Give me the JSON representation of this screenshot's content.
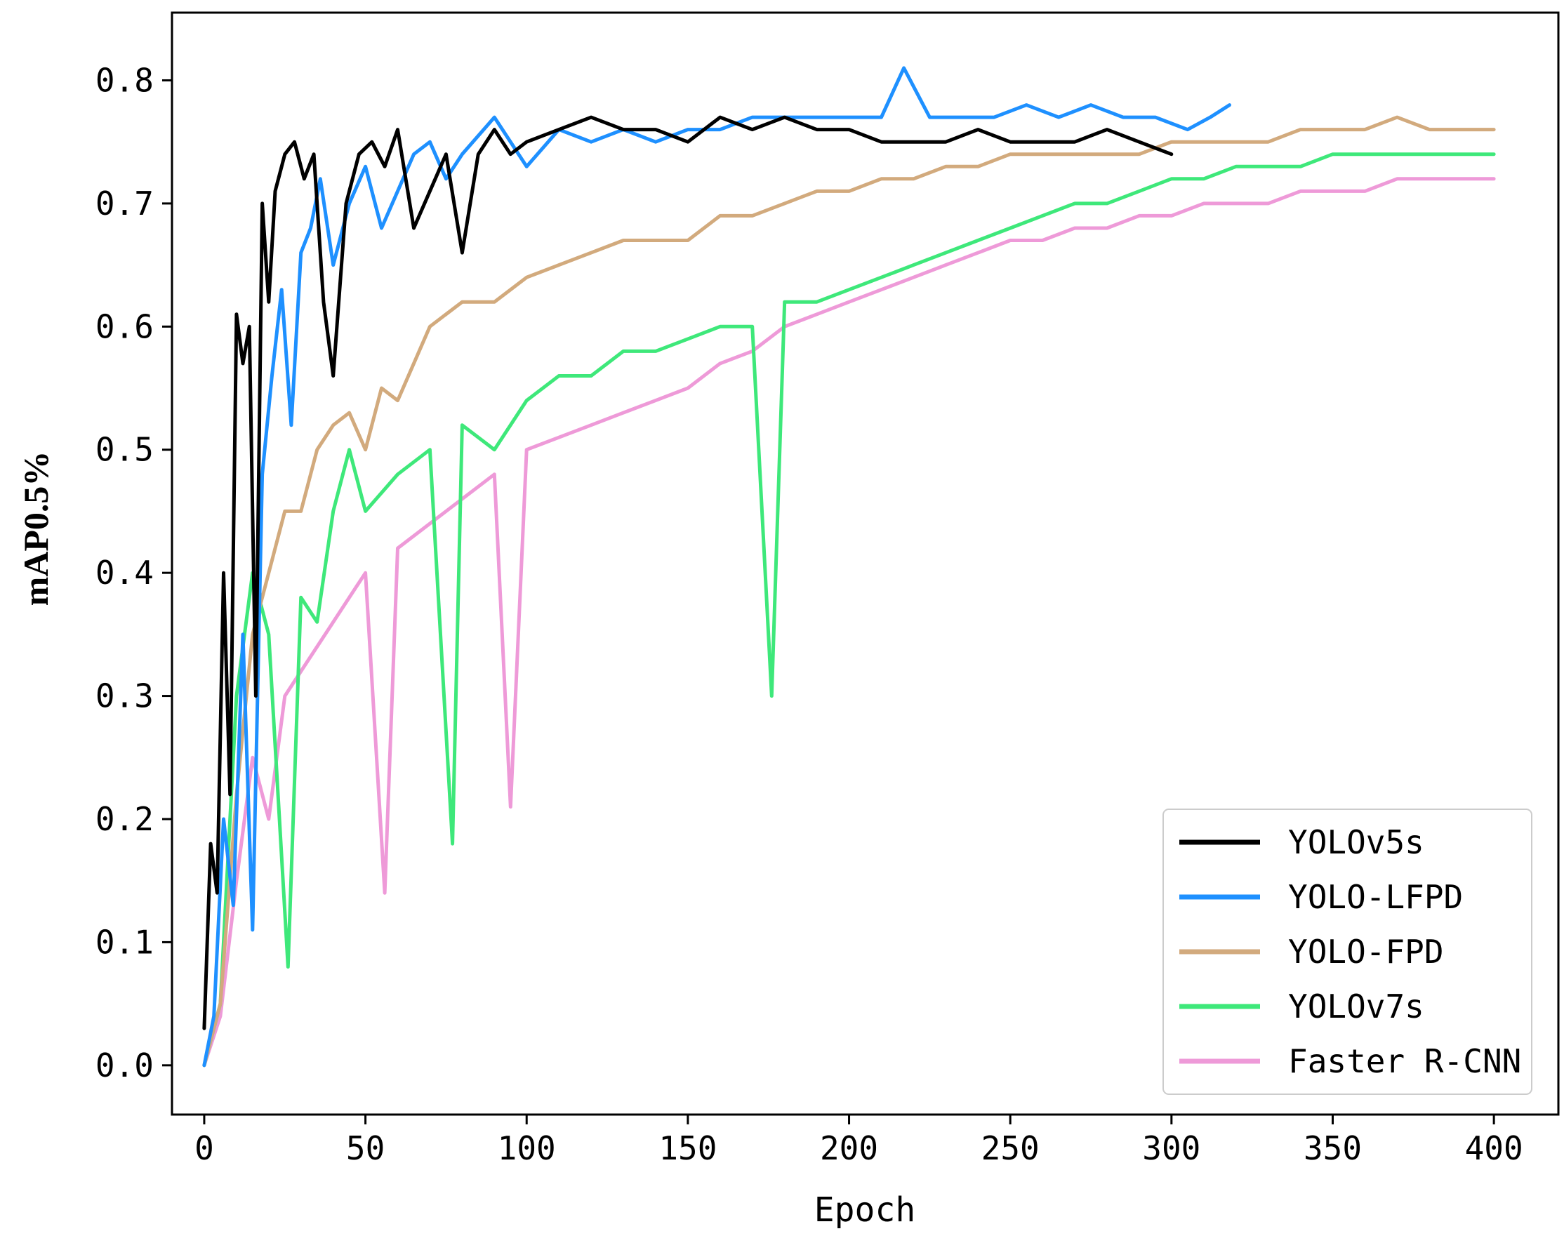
{
  "chart_data": {
    "type": "line",
    "title": "",
    "xlabel": "Epoch",
    "ylabel": "mAP0.5%",
    "xlim": [
      -10,
      420
    ],
    "ylim": [
      -0.04,
      0.855
    ],
    "xticks": [
      0,
      50,
      100,
      150,
      200,
      250,
      300,
      350,
      400
    ],
    "yticks": [
      0.0,
      0.1,
      0.2,
      0.3,
      0.4,
      0.5,
      0.6,
      0.7,
      0.8
    ],
    "xtick_labels": [
      "0",
      "50",
      "100",
      "150",
      "200",
      "250",
      "300",
      "350",
      "400"
    ],
    "ytick_labels": [
      "0.0",
      "0.1",
      "0.2",
      "0.3",
      "0.4",
      "0.5",
      "0.6",
      "0.7",
      "0.8"
    ],
    "grid": false,
    "legend_position": "lower-right",
    "series": [
      {
        "name": "YOLOv5s",
        "color": "#000000",
        "x": [
          0,
          2,
          4,
          6,
          8,
          10,
          12,
          14,
          16,
          18,
          20,
          22,
          25,
          28,
          31,
          34,
          37,
          40,
          44,
          48,
          52,
          56,
          60,
          65,
          70,
          75,
          80,
          85,
          90,
          95,
          100,
          110,
          120,
          130,
          140,
          150,
          160,
          170,
          180,
          190,
          200,
          210,
          220,
          230,
          240,
          250,
          260,
          270,
          280,
          290,
          300
        ],
        "values": [
          0.03,
          0.18,
          0.14,
          0.4,
          0.22,
          0.61,
          0.57,
          0.6,
          0.3,
          0.7,
          0.62,
          0.71,
          0.74,
          0.75,
          0.72,
          0.74,
          0.62,
          0.56,
          0.7,
          0.74,
          0.75,
          0.73,
          0.76,
          0.68,
          0.71,
          0.74,
          0.66,
          0.74,
          0.76,
          0.74,
          0.75,
          0.76,
          0.77,
          0.76,
          0.76,
          0.75,
          0.77,
          0.76,
          0.77,
          0.76,
          0.76,
          0.75,
          0.75,
          0.75,
          0.76,
          0.75,
          0.75,
          0.75,
          0.76,
          0.75,
          0.74
        ]
      },
      {
        "name": "YOLO-LFPD",
        "color": "#1e90ff",
        "x": [
          0,
          3,
          6,
          9,
          12,
          15,
          18,
          21,
          24,
          27,
          30,
          33,
          36,
          40,
          45,
          50,
          55,
          60,
          65,
          70,
          75,
          80,
          90,
          100,
          110,
          120,
          130,
          140,
          150,
          160,
          170,
          180,
          190,
          200,
          210,
          217,
          225,
          235,
          245,
          255,
          265,
          275,
          285,
          295,
          305,
          312,
          318
        ],
        "values": [
          0.0,
          0.04,
          0.2,
          0.13,
          0.35,
          0.11,
          0.48,
          0.56,
          0.63,
          0.52,
          0.66,
          0.68,
          0.72,
          0.65,
          0.7,
          0.73,
          0.68,
          0.71,
          0.74,
          0.75,
          0.72,
          0.74,
          0.77,
          0.73,
          0.76,
          0.75,
          0.76,
          0.75,
          0.76,
          0.76,
          0.77,
          0.77,
          0.77,
          0.77,
          0.77,
          0.81,
          0.77,
          0.77,
          0.77,
          0.78,
          0.77,
          0.78,
          0.77,
          0.77,
          0.76,
          0.77,
          0.78
        ]
      },
      {
        "name": "YOLO-FPD",
        "color": "#d2aa7d",
        "x": [
          0,
          5,
          10,
          15,
          20,
          25,
          30,
          35,
          40,
          45,
          50,
          55,
          60,
          70,
          80,
          90,
          100,
          110,
          120,
          130,
          140,
          150,
          160,
          170,
          180,
          190,
          200,
          210,
          220,
          230,
          240,
          250,
          260,
          270,
          280,
          290,
          300,
          310,
          320,
          330,
          340,
          350,
          360,
          370,
          380,
          390,
          400
        ],
        "values": [
          0.0,
          0.05,
          0.22,
          0.35,
          0.4,
          0.45,
          0.45,
          0.5,
          0.52,
          0.53,
          0.5,
          0.55,
          0.54,
          0.6,
          0.62,
          0.62,
          0.64,
          0.65,
          0.66,
          0.67,
          0.67,
          0.67,
          0.69,
          0.69,
          0.7,
          0.71,
          0.71,
          0.72,
          0.72,
          0.73,
          0.73,
          0.74,
          0.74,
          0.74,
          0.74,
          0.74,
          0.75,
          0.75,
          0.75,
          0.75,
          0.76,
          0.76,
          0.76,
          0.77,
          0.76,
          0.76,
          0.76
        ]
      },
      {
        "name": "YOLOv7s",
        "color": "#3ee87a",
        "x": [
          0,
          5,
          10,
          15,
          20,
          26,
          30,
          35,
          40,
          45,
          50,
          60,
          70,
          77,
          80,
          90,
          100,
          110,
          120,
          130,
          140,
          150,
          160,
          170,
          176,
          180,
          190,
          200,
          210,
          220,
          230,
          240,
          250,
          260,
          270,
          280,
          290,
          300,
          310,
          320,
          330,
          340,
          350,
          360,
          370,
          380,
          390,
          400
        ],
        "values": [
          0.0,
          0.05,
          0.3,
          0.4,
          0.35,
          0.08,
          0.38,
          0.36,
          0.45,
          0.5,
          0.45,
          0.48,
          0.5,
          0.18,
          0.52,
          0.5,
          0.54,
          0.56,
          0.56,
          0.58,
          0.58,
          0.59,
          0.6,
          0.6,
          0.3,
          0.62,
          0.62,
          0.63,
          0.64,
          0.65,
          0.66,
          0.67,
          0.68,
          0.69,
          0.7,
          0.7,
          0.71,
          0.72,
          0.72,
          0.73,
          0.73,
          0.73,
          0.74,
          0.74,
          0.74,
          0.74,
          0.74,
          0.74
        ]
      },
      {
        "name": "Faster R-CNN",
        "color": "#ee9ad8",
        "x": [
          0,
          5,
          10,
          15,
          20,
          25,
          30,
          35,
          40,
          45,
          50,
          56,
          60,
          70,
          80,
          90,
          95,
          100,
          110,
          120,
          130,
          140,
          150,
          160,
          170,
          180,
          190,
          200,
          210,
          220,
          230,
          240,
          250,
          260,
          270,
          280,
          290,
          300,
          310,
          320,
          330,
          340,
          350,
          360,
          370,
          380,
          390,
          400
        ],
        "values": [
          0.0,
          0.04,
          0.15,
          0.25,
          0.2,
          0.3,
          0.32,
          0.34,
          0.36,
          0.38,
          0.4,
          0.14,
          0.42,
          0.44,
          0.46,
          0.48,
          0.21,
          0.5,
          0.51,
          0.52,
          0.53,
          0.54,
          0.55,
          0.57,
          0.58,
          0.6,
          0.61,
          0.62,
          0.63,
          0.64,
          0.65,
          0.66,
          0.67,
          0.67,
          0.68,
          0.68,
          0.69,
          0.69,
          0.7,
          0.7,
          0.7,
          0.71,
          0.71,
          0.71,
          0.72,
          0.72,
          0.72,
          0.72
        ]
      }
    ]
  }
}
